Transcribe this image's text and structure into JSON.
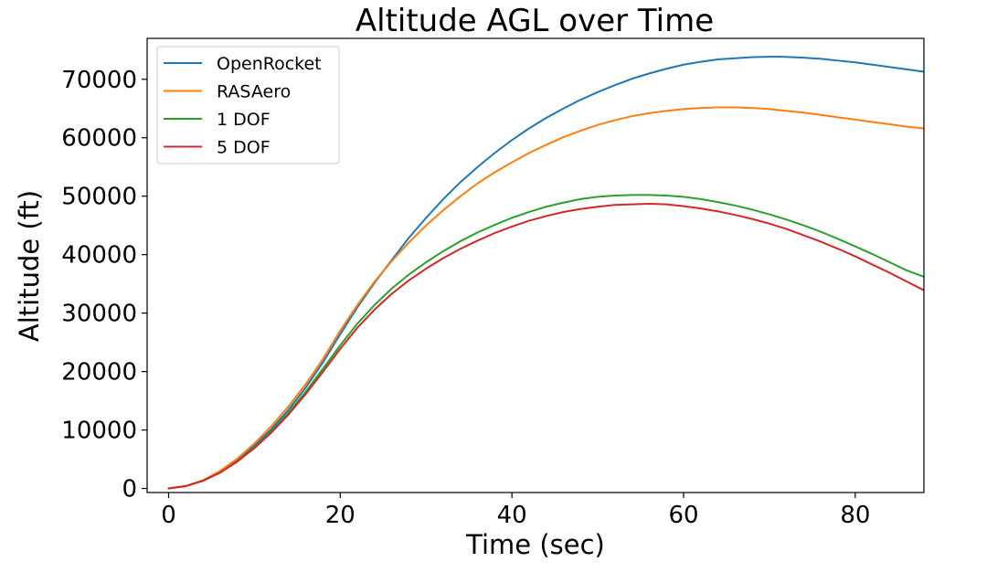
{
  "chart_data": {
    "type": "line",
    "title": "Altitude AGL over Time",
    "xlabel": "Time (sec)",
    "ylabel": "Altitude (ft)",
    "xlim": [
      -2.5,
      88
    ],
    "ylim": [
      -700,
      77000
    ],
    "xticks": [
      0,
      20,
      40,
      60,
      80
    ],
    "yticks": [
      0,
      10000,
      20000,
      30000,
      40000,
      50000,
      60000,
      70000
    ],
    "grid": false,
    "legend_position": "top-left",
    "series": [
      {
        "name": "OpenRocket",
        "color": "#1f77b4",
        "x": [
          0,
          2,
          4,
          6,
          8,
          10,
          12,
          14,
          16,
          18,
          20,
          22,
          24,
          26,
          28,
          30,
          32,
          34,
          36,
          38,
          40,
          42,
          44,
          46,
          48,
          50,
          52,
          54,
          56,
          58,
          60,
          62,
          64,
          66,
          68,
          70,
          71.5,
          74,
          76,
          78,
          80,
          82,
          84,
          86,
          88
        ],
        "y": [
          0,
          400,
          1300,
          2800,
          4800,
          7300,
          10200,
          13500,
          17300,
          21600,
          26400,
          31000,
          35200,
          39100,
          42900,
          46300,
          49500,
          52400,
          55000,
          57400,
          59600,
          61600,
          63400,
          65000,
          66500,
          67800,
          69000,
          70100,
          71000,
          71800,
          72500,
          73000,
          73400,
          73600,
          73800,
          73850,
          73850,
          73700,
          73500,
          73200,
          72900,
          72500,
          72100,
          71700,
          71300
        ]
      },
      {
        "name": "RASAero",
        "color": "#ff7f0e",
        "x": [
          0,
          2,
          4,
          6,
          8,
          10,
          12,
          14,
          16,
          18,
          20,
          22,
          24,
          26,
          28,
          30,
          32,
          34,
          36,
          38,
          40,
          42,
          44,
          46,
          48,
          50,
          52,
          54,
          56,
          58,
          60,
          62,
          64,
          66,
          68,
          70,
          72,
          74,
          76,
          78,
          80,
          82,
          84,
          86,
          88
        ],
        "y": [
          0,
          420,
          1400,
          3000,
          5100,
          7700,
          10700,
          14100,
          17900,
          22200,
          27000,
          31400,
          35400,
          38900,
          42100,
          45000,
          47600,
          50000,
          52200,
          54100,
          55800,
          57400,
          58800,
          60100,
          61200,
          62200,
          63000,
          63700,
          64200,
          64600,
          64900,
          65100,
          65200,
          65200,
          65100,
          64900,
          64600,
          64300,
          63900,
          63500,
          63100,
          62700,
          62300,
          61900,
          61600
        ]
      },
      {
        "name": "1 DOF",
        "color": "#2ca02c",
        "x": [
          0,
          2,
          4,
          6,
          8,
          10,
          12,
          14,
          16,
          18,
          20,
          22,
          24,
          26,
          28,
          30,
          32,
          34,
          36,
          38,
          40,
          42,
          44,
          46,
          48,
          50,
          52,
          54,
          56,
          58,
          60,
          62,
          64,
          66,
          68,
          70,
          72,
          74,
          76,
          78,
          80,
          82,
          84,
          86,
          88
        ],
        "y": [
          0,
          400,
          1300,
          2700,
          4600,
          7000,
          9800,
          13000,
          16600,
          20500,
          24500,
          28200,
          31400,
          34200,
          36600,
          38700,
          40600,
          42300,
          43800,
          45100,
          46300,
          47300,
          48200,
          48900,
          49500,
          49900,
          50100,
          50200,
          50200,
          50100,
          49900,
          49500,
          49000,
          48400,
          47700,
          46900,
          46000,
          45000,
          43900,
          42700,
          41400,
          40100,
          38700,
          37300,
          36200
        ]
      },
      {
        "name": "5 DOF",
        "color": "#d62728",
        "x": [
          0,
          2,
          4,
          6,
          8,
          10,
          12,
          14,
          16,
          18,
          20,
          22,
          24,
          26,
          28,
          30,
          32,
          34,
          36,
          38,
          40,
          42,
          44,
          46,
          48,
          50,
          52,
          54,
          56,
          58,
          60,
          62,
          64,
          66,
          68,
          70,
          72,
          74,
          76,
          78,
          80,
          82,
          84,
          86,
          88
        ],
        "y": [
          0,
          400,
          1300,
          2700,
          4600,
          6900,
          9600,
          12700,
          16200,
          20000,
          23900,
          27500,
          30600,
          33300,
          35600,
          37600,
          39400,
          41000,
          42400,
          43700,
          44800,
          45800,
          46600,
          47300,
          47800,
          48200,
          48500,
          48600,
          48700,
          48600,
          48300,
          47900,
          47400,
          46800,
          46100,
          45300,
          44400,
          43300,
          42200,
          41000,
          39700,
          38300,
          36900,
          35400,
          33900
        ]
      }
    ]
  }
}
